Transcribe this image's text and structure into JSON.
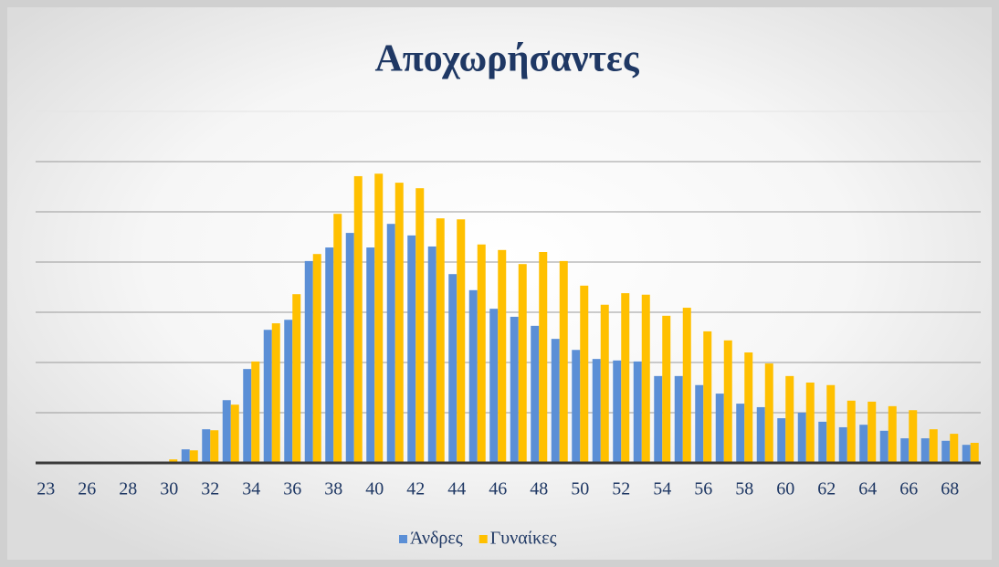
{
  "chart_data": {
    "type": "bar",
    "title": "Αποχωρήσαντες",
    "categories": [
      "23",
      null,
      "26",
      null,
      "28",
      null,
      "30",
      null,
      "32",
      null,
      "34",
      null,
      "36",
      null,
      "38",
      null,
      "40",
      null,
      "42",
      null,
      "44",
      null,
      "46",
      null,
      "48",
      null,
      "50",
      null,
      "52",
      null,
      "54",
      null,
      "56",
      null,
      "58",
      null,
      "60",
      null,
      "62",
      null,
      "64",
      null,
      "66",
      null,
      "68",
      null
    ],
    "series": [
      {
        "name": "Άνδρες",
        "color": "#5b8fd6",
        "values": [
          0,
          0,
          0,
          0,
          0,
          0,
          0,
          0.27,
          0.67,
          1.25,
          1.87,
          2.65,
          2.85,
          4.02,
          4.29,
          4.58,
          4.29,
          4.76,
          4.53,
          4.31,
          3.76,
          3.44,
          3.07,
          2.91,
          2.73,
          2.47,
          2.25,
          2.07,
          2.04,
          2.02,
          1.73,
          1.73,
          1.55,
          1.38,
          1.18,
          1.11,
          0.89,
          1.0,
          0.82,
          0.71,
          0.76,
          0.64,
          0.49,
          0.49,
          0.44,
          0.36
        ]
      },
      {
        "name": "Γυναίκες",
        "color": "#ffc000",
        "values": [
          0,
          0,
          0,
          0,
          0,
          0,
          0.07,
          0.25,
          0.65,
          1.16,
          2.02,
          2.78,
          3.36,
          4.16,
          4.96,
          5.71,
          5.76,
          5.58,
          5.47,
          4.87,
          4.85,
          4.35,
          4.24,
          3.96,
          4.2,
          4.02,
          3.53,
          3.15,
          3.38,
          3.35,
          2.93,
          3.09,
          2.62,
          2.44,
          2.2,
          1.98,
          1.73,
          1.6,
          1.55,
          1.24,
          1.22,
          1.13,
          1.05,
          0.67,
          0.58,
          0.4
        ]
      }
    ],
    "ylim": [
      0,
      7
    ],
    "yticks": [
      0,
      1,
      2,
      3,
      4,
      5,
      6,
      7
    ],
    "grid": true,
    "legend": "bottom"
  }
}
